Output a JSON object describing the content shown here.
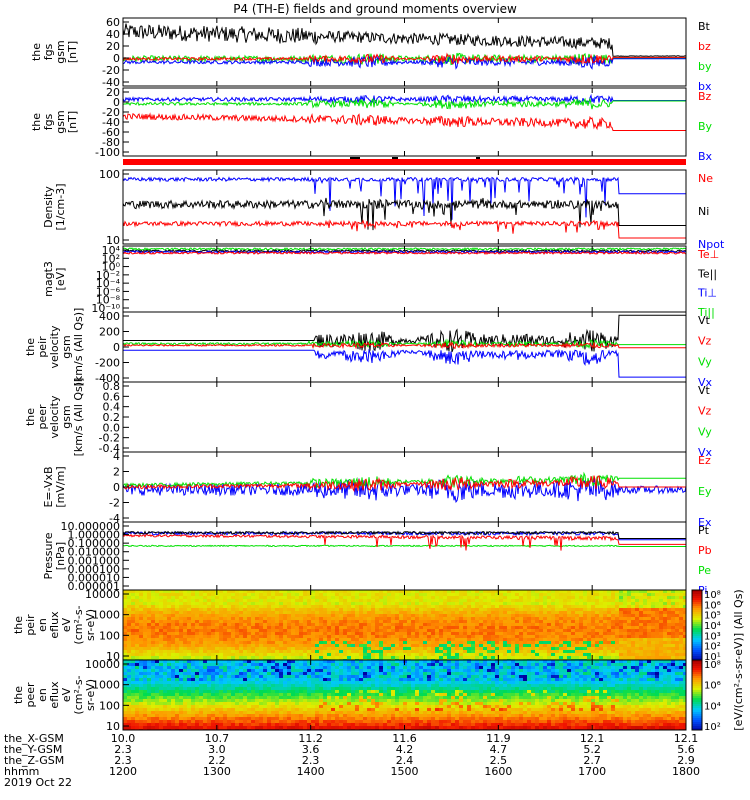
{
  "title": "P4 (TH-E) fields and ground moments overview",
  "colors": {
    "black": "#000000",
    "red": "#ff0000",
    "green": "#00e000",
    "blue": "#0000ff"
  },
  "chart_data": [
    {
      "id": "fgs_gsm",
      "type": "line",
      "ylabel_lines": [
        "the",
        "fgs",
        "gsm",
        "[nT]"
      ],
      "yticks": [
        "60",
        "40",
        "20",
        "0",
        "-20",
        "-40"
      ],
      "ylim": [
        -40,
        60
      ],
      "legend": [
        {
          "name": "Bt",
          "color": "#000000"
        },
        {
          "name": "bz",
          "color": "#ff0000"
        },
        {
          "name": "by",
          "color": "#00e000"
        },
        {
          "name": "bx",
          "color": "#0000ff"
        }
      ]
    },
    {
      "id": "fgs_gsm_bz",
      "type": "line",
      "ylabel_lines": [
        "the",
        "fgs",
        "gsm",
        "[nT]"
      ],
      "yticks": [
        "20",
        "0",
        "-20",
        "-40",
        "-60",
        "-80",
        "-100"
      ],
      "ylim": [
        -100,
        20
      ],
      "legend": [
        {
          "name": "Bz",
          "color": "#ff0000"
        },
        {
          "name": "By",
          "color": "#00e000"
        },
        {
          "name": "Bx",
          "color": "#0000ff"
        }
      ]
    },
    {
      "id": "density",
      "type": "line",
      "scale": "log",
      "ylabel_lines": [
        "Density",
        "[1/cm-3]"
      ],
      "yticks": [
        "100",
        "10"
      ],
      "legend": [
        {
          "name": "Ne",
          "color": "#ff0000"
        },
        {
          "name": "Ni",
          "color": "#000000"
        },
        {
          "name": "Npot",
          "color": "#0000ff"
        }
      ]
    },
    {
      "id": "temp",
      "type": "line",
      "scale": "log",
      "ylabel_lines": [
        "magt3",
        "[eV]"
      ],
      "yticks": [
        "10⁴",
        "10²",
        "10⁰",
        "10⁻²",
        "10⁻⁴",
        "10⁻⁶",
        "10⁻⁸",
        "10⁻¹⁰"
      ],
      "legend": [
        {
          "name": "Te⊥",
          "color": "#ff0000"
        },
        {
          "name": "Te||",
          "color": "#000000"
        },
        {
          "name": "Ti⊥",
          "color": "#0000ff"
        },
        {
          "name": "Ti||",
          "color": "#00e000"
        }
      ]
    },
    {
      "id": "peir_velocity",
      "type": "line",
      "ylabel_lines": [
        "the",
        "peir",
        "velocity",
        "gsm",
        "[km/s (All Qs)]"
      ],
      "yticks": [
        "400",
        "200",
        "0",
        "-200",
        "-400"
      ],
      "ylim": [
        -400,
        400
      ],
      "legend": [
        {
          "name": "Vt",
          "color": "#000000"
        },
        {
          "name": "Vz",
          "color": "#ff0000"
        },
        {
          "name": "Vy",
          "color": "#00e000"
        },
        {
          "name": "Vx",
          "color": "#0000ff"
        }
      ]
    },
    {
      "id": "peer_velocity",
      "type": "line",
      "ylabel_lines": [
        "the",
        "peer",
        "velocity",
        "gsm",
        "[km/s (All Qs)]"
      ],
      "yticks": [
        "0.8",
        "0.6",
        "0.4",
        "0.2",
        "0.0",
        "-0.2",
        "-0.4"
      ],
      "legend": [
        {
          "name": "Vt",
          "color": "#000000"
        },
        {
          "name": "Vz",
          "color": "#ff0000"
        },
        {
          "name": "Vy",
          "color": "#00e000"
        },
        {
          "name": "Vx",
          "color": "#0000ff"
        }
      ]
    },
    {
      "id": "efield",
      "type": "line",
      "ylabel_lines": [
        "E=-VxB",
        "[mV/m]"
      ],
      "yticks": [
        "4",
        "2",
        "0",
        "-2",
        "-4"
      ],
      "ylim": [
        -4,
        4
      ],
      "legend": [
        {
          "name": "Ez",
          "color": "#ff0000"
        },
        {
          "name": "Ey",
          "color": "#00e000"
        },
        {
          "name": "Ex",
          "color": "#0000ff"
        }
      ]
    },
    {
      "id": "pressure",
      "type": "line",
      "scale": "log",
      "ylabel_lines": [
        "Pressure",
        "[nPa]"
      ],
      "yticks": [
        "10.000000",
        "1.000000",
        "0.100000",
        "0.010000",
        "0.001000",
        "0.000100",
        "0.000010",
        "0.000001"
      ],
      "legend": [
        {
          "name": "Pt",
          "color": "#000000"
        },
        {
          "name": "Pb",
          "color": "#ff0000"
        },
        {
          "name": "Pe",
          "color": "#00e000"
        },
        {
          "name": "Pi",
          "color": "#0000ff"
        }
      ]
    },
    {
      "id": "peir_spec",
      "type": "heatmap",
      "ylabel_lines": [
        "the",
        "peir",
        "en",
        "eflux",
        "eV",
        "(cm²-s-",
        "sr-eV)"
      ],
      "yticks": [
        "10000",
        "1000",
        "100",
        "10"
      ],
      "colorbar_ticks": [
        "10⁸",
        "10⁶",
        "10⁵",
        "10⁴",
        "10³",
        "10²",
        "10¹"
      ]
    },
    {
      "id": "peer_spec",
      "type": "heatmap",
      "ylabel_lines": [
        "the",
        "peer",
        "en",
        "eflux",
        "eV",
        "(cm²-s-",
        "sr-eV)"
      ],
      "yticks": [
        "10000",
        "1000",
        "100",
        "10"
      ],
      "colorbar_ticks": [
        "10⁸",
        "10⁶",
        "10⁴",
        "10²"
      ]
    }
  ],
  "colorbar_label": "[eV/(cm²-s-sr-eV)] (All Qs)",
  "xaxis": {
    "row_labels": [
      "the_X-GSM",
      "the_Y-GSM",
      "the_Z-GSM",
      "hhmm",
      "2019 Oct 22"
    ],
    "x_gsm": [
      "10.0",
      "10.7",
      "11.2",
      "11.6",
      "11.9",
      "12.1",
      "12.1"
    ],
    "y_gsm": [
      "2.3",
      "3.0",
      "3.6",
      "4.2",
      "4.7",
      "5.2",
      "5.6"
    ],
    "z_gsm": [
      "2.3",
      "2.2",
      "2.3",
      "2.4",
      "2.5",
      "2.7",
      "2.9"
    ],
    "hhmm": [
      "1200",
      "1300",
      "1400",
      "1500",
      "1600",
      "1700",
      "1800"
    ]
  }
}
